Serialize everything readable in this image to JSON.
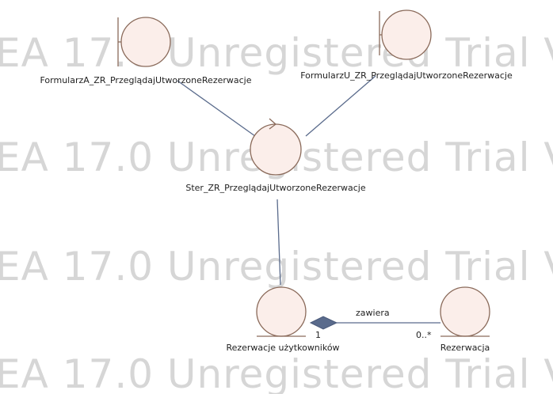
{
  "watermark": "EA 17.0 Unregistered Trial Version",
  "colors": {
    "node_fill": "#fbeeea",
    "node_stroke": "#8a6a5a",
    "connector": "#5a6b8c",
    "diamond": "#5a6b8c",
    "watermark": "#d6d6d6"
  },
  "nodes": {
    "boundary_a": {
      "label": "FormularzA_ZR_PrzeglądajUtworzoneRezerwacje",
      "icon": "boundary-icon"
    },
    "boundary_u": {
      "label": "FormularzU_ZR_PrzeglądajUtworzoneRezerwacje",
      "icon": "boundary-icon"
    },
    "control": {
      "label": "Ster_ZR_PrzeglądajUtworzoneRezerwacje",
      "icon": "control-icon"
    },
    "entity_user_res": {
      "label": "Rezerwacje użytkowników",
      "icon": "entity-icon"
    },
    "entity_res": {
      "label": "Rezerwacja",
      "icon": "entity-icon"
    }
  },
  "association": {
    "name": "zawiera",
    "source_multiplicity": "1",
    "target_multiplicity": "0..*"
  }
}
